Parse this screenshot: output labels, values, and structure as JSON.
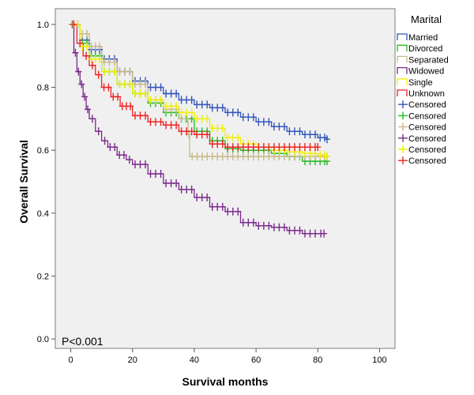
{
  "chart_data": {
    "type": "line",
    "title": "",
    "xlabel": "Survival months",
    "ylabel": "Overall Survival",
    "xlim": [
      -5,
      105
    ],
    "ylim": [
      -0.03,
      1.05
    ],
    "x_ticks": [
      0,
      20,
      40,
      60,
      80,
      100
    ],
    "y_ticks": [
      0.0,
      0.2,
      0.4,
      0.6,
      0.8,
      1.0
    ],
    "x_tick_labels": [
      "0",
      "20",
      "40",
      "60",
      "80",
      "100"
    ],
    "y_tick_labels": [
      "0.0",
      "0.2",
      "0.4",
      "0.6",
      "0.8",
      "1.0"
    ],
    "annotation": "P<0.001",
    "legend_title": "Marital",
    "legend_position": "right",
    "legend_entries": [
      {
        "label": "Married",
        "color": "#3355bb",
        "kind": "line"
      },
      {
        "label": "Divorced",
        "color": "#22bb22",
        "kind": "line"
      },
      {
        "label": "Separated",
        "color": "#c8b98a",
        "kind": "line"
      },
      {
        "label": "Widowed",
        "color": "#7a2a8c",
        "kind": "line"
      },
      {
        "label": "Single",
        "color": "#f0f000",
        "kind": "line"
      },
      {
        "label": "Unknown",
        "color": "#ee2222",
        "kind": "line"
      },
      {
        "label": "Censored",
        "color": "#3355bb",
        "kind": "censor"
      },
      {
        "label": "Censored",
        "color": "#22bb22",
        "kind": "censor"
      },
      {
        "label": "Censored",
        "color": "#c8b98a",
        "kind": "censor"
      },
      {
        "label": "Censored",
        "color": "#7a2a8c",
        "kind": "censor"
      },
      {
        "label": "Censored",
        "color": "#f0f000",
        "kind": "censor"
      },
      {
        "label": "Censored",
        "color": "#ee2222",
        "kind": "censor"
      }
    ],
    "series": [
      {
        "name": "Married",
        "color": "#3355bb",
        "x": [
          0,
          3,
          6,
          10,
          15,
          20,
          25,
          30,
          35,
          40,
          45,
          50,
          55,
          60,
          65,
          70,
          75,
          80,
          83
        ],
        "y": [
          1.0,
          0.95,
          0.92,
          0.89,
          0.85,
          0.82,
          0.8,
          0.78,
          0.76,
          0.745,
          0.735,
          0.72,
          0.705,
          0.69,
          0.675,
          0.66,
          0.65,
          0.64,
          0.635
        ]
      },
      {
        "name": "Divorced",
        "color": "#22bb22",
        "x": [
          0,
          3,
          6,
          10,
          15,
          20,
          25,
          30,
          35,
          40,
          45,
          50,
          55,
          60,
          65,
          70,
          75,
          80,
          83
        ],
        "y": [
          1.0,
          0.94,
          0.9,
          0.85,
          0.81,
          0.78,
          0.75,
          0.72,
          0.7,
          0.66,
          0.63,
          0.605,
          0.6,
          0.6,
          0.59,
          0.58,
          0.565,
          0.565,
          0.565
        ]
      },
      {
        "name": "Separated",
        "color": "#c8b98a",
        "x": [
          0,
          3,
          6,
          10,
          15,
          20,
          25,
          30,
          35,
          38,
          38.5,
          45,
          50,
          60,
          70,
          80,
          83
        ],
        "y": [
          1.0,
          0.97,
          0.93,
          0.88,
          0.85,
          0.81,
          0.76,
          0.73,
          0.7,
          0.65,
          0.58,
          0.58,
          0.58,
          0.58,
          0.58,
          0.58,
          0.58
        ]
      },
      {
        "name": "Widowed",
        "color": "#7a2a8c",
        "x": [
          0,
          1,
          2,
          3,
          4,
          5,
          6,
          8,
          10,
          12,
          15,
          18,
          20,
          25,
          30,
          35,
          40,
          45,
          50,
          55,
          60,
          65,
          70,
          75,
          80,
          82
        ],
        "y": [
          1.0,
          0.91,
          0.85,
          0.81,
          0.77,
          0.73,
          0.7,
          0.66,
          0.63,
          0.61,
          0.585,
          0.57,
          0.555,
          0.525,
          0.495,
          0.475,
          0.45,
          0.42,
          0.405,
          0.37,
          0.36,
          0.355,
          0.345,
          0.335,
          0.335,
          0.335
        ]
      },
      {
        "name": "Single",
        "color": "#f0f000",
        "x": [
          0,
          3,
          6,
          10,
          15,
          20,
          25,
          30,
          35,
          40,
          45,
          50,
          55,
          60,
          65,
          70,
          75,
          80,
          83
        ],
        "y": [
          1.0,
          0.93,
          0.89,
          0.85,
          0.81,
          0.78,
          0.76,
          0.74,
          0.72,
          0.7,
          0.67,
          0.64,
          0.62,
          0.61,
          0.6,
          0.595,
          0.59,
          0.585,
          0.58
        ]
      },
      {
        "name": "Unknown",
        "color": "#ee2222",
        "x": [
          0,
          2,
          4,
          6,
          8,
          10,
          13,
          16,
          20,
          25,
          30,
          35,
          40,
          45,
          50,
          55,
          60,
          65,
          70,
          75,
          80
        ],
        "y": [
          1.0,
          0.94,
          0.9,
          0.87,
          0.84,
          0.8,
          0.77,
          0.74,
          0.71,
          0.69,
          0.68,
          0.66,
          0.65,
          0.62,
          0.61,
          0.61,
          0.61,
          0.61,
          0.61,
          0.61,
          0.61
        ]
      }
    ]
  }
}
